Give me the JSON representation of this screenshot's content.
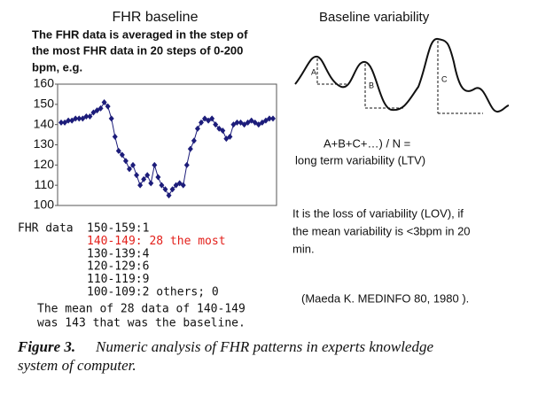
{
  "chart_data": {
    "type": "line",
    "title": "FHR baseline",
    "subtitle": [
      "The FHR data is averaged in the step of",
      "the most FHR data in 20 steps of 0-200",
      "bpm, e.g."
    ],
    "categories": [
      null,
      null,
      null,
      null,
      null,
      null,
      null,
      null,
      null,
      null,
      null,
      null,
      null,
      null,
      null,
      null,
      null,
      null,
      null,
      null,
      null,
      null,
      null,
      null,
      null,
      null,
      null,
      null,
      null,
      null,
      null,
      null,
      null,
      null,
      null,
      null,
      null,
      null,
      null,
      null,
      null,
      null,
      null,
      null,
      null,
      null,
      null,
      null,
      null,
      null,
      null,
      null,
      null,
      null,
      null,
      null,
      null,
      null,
      null,
      null
    ],
    "series": [
      {
        "color": "#1c1c7a",
        "values": [
          141,
          141,
          142,
          142,
          143,
          143,
          143,
          144,
          144,
          146,
          147,
          148,
          151,
          149,
          143,
          134,
          127,
          125,
          122,
          118,
          120,
          115,
          110,
          113,
          115,
          111,
          120,
          114,
          110,
          108,
          105,
          108,
          110,
          111,
          110,
          120,
          128,
          132,
          138,
          141,
          143,
          142,
          143,
          140,
          138,
          137,
          133,
          134,
          140,
          141,
          141,
          140,
          141,
          142,
          141,
          140,
          141,
          142,
          143,
          143
        ]
      }
    ],
    "ylim": [
      100,
      160
    ],
    "yticks": [
      100,
      110,
      120,
      130,
      140,
      150,
      160
    ]
  },
  "fhr_data": {
    "label": "FHR data",
    "rows": [
      "150-159:1",
      "140-149: 28 the most",
      "130-139:4",
      "120-129:6",
      "110-119:9",
      "100-109:2 others; 0"
    ],
    "highlight": {
      "row": 1,
      "color": "#e3201b"
    },
    "conclusion": [
      "The mean of 28 data of 140-149",
      "was 143 that was the baseline."
    ]
  },
  "right_panel": {
    "title": "Baseline variability",
    "labels": [
      "A",
      "B",
      "C"
    ],
    "formula": "A+B+C+…) / N =",
    "formula_result": "long term variability (LTV)",
    "lov": [
      "It is the loss of variability (LOV), if",
      "the mean variability is <3bpm in 20",
      "min."
    ],
    "reference": "(Maeda K. MEDINFO 80, 1980 )."
  },
  "caption": {
    "label": "Figure 3.",
    "text": [
      "Numeric analysis of FHR patterns in experts knowledge",
      "system of computer."
    ]
  }
}
